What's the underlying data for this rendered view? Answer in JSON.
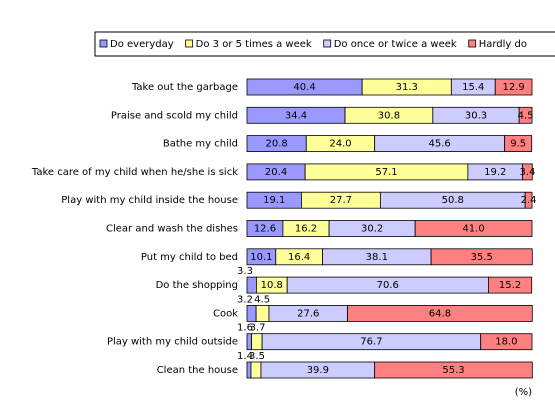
{
  "chart_data": {
    "type": "stacked-bar-horizontal",
    "categories": [
      "Take out the garbage",
      "Praise and scold my child",
      "Bathe my child",
      "Take care of my child when he/she is sick",
      "Play with my child inside the house",
      "Clear and wash the dishes",
      "Put my child to bed",
      "Do the shopping",
      "Cook",
      "Play with my child outside",
      "Clean the house"
    ],
    "series": [
      {
        "name": "Do everyday",
        "color": "#9999ff",
        "values": [
          40.4,
          34.4,
          20.8,
          20.4,
          19.1,
          12.6,
          10.1,
          3.3,
          3.2,
          1.6,
          1.4
        ],
        "value_labels": [
          "40.4",
          "34.4",
          "20.8",
          "20.4",
          "19.1",
          "12.6",
          "10.1",
          "3.3",
          "3.2",
          "1.6",
          "1.4"
        ]
      },
      {
        "name": "Do 3 or 5 times a week",
        "color": "#ffff99",
        "values": [
          31.3,
          30.8,
          24,
          57.1,
          27.7,
          16.2,
          16.4,
          10.8,
          4.5,
          3.7,
          3.5
        ],
        "value_labels": [
          "31.3",
          "30.8",
          "24.0",
          "57.1",
          "27.7",
          "16.2",
          "16.4",
          "10.8",
          "4.5",
          "3.7",
          "3.5"
        ]
      },
      {
        "name": "Do once or twice a week",
        "color": "#ccccff",
        "values": [
          15.4,
          30.3,
          45.6,
          19.2,
          50.8,
          30.2,
          38.1,
          70.6,
          27.6,
          76.7,
          39.9
        ],
        "value_labels": [
          "15.4",
          "30.3",
          "45.6",
          "19.2",
          "50.8",
          "30.2",
          "38.1",
          "70.6",
          "27.6",
          "76.7",
          "39.9"
        ]
      },
      {
        "name": "Hardly do",
        "color": "#ff8080",
        "values": [
          12.9,
          4.5,
          9.5,
          3.4,
          2.4,
          41,
          35.5,
          15.2,
          64.8,
          18,
          55.3
        ],
        "value_labels": [
          "12.9",
          "4.5",
          "9.5",
          "3.4",
          "2.4",
          "41.0",
          "35.5",
          "15.2",
          "64.8",
          "18.0",
          "55.3"
        ]
      }
    ],
    "xlim": [
      0,
      100
    ],
    "unit_label": "(%)"
  }
}
